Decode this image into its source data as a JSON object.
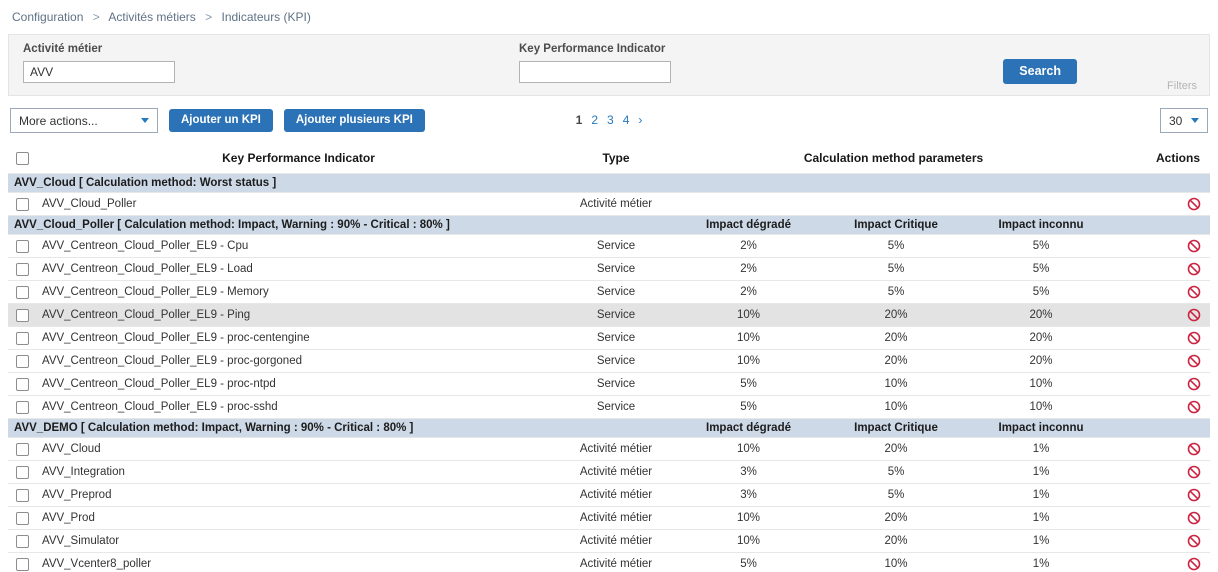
{
  "breadcrumb": {
    "separator": ">",
    "items": [
      "Configuration",
      "Activités métiers",
      "Indicateurs (KPI)"
    ]
  },
  "filters": {
    "ba_label": "Activité métier",
    "ba_value": "AVV",
    "kpi_label": "Key Performance Indicator",
    "kpi_value": "",
    "search_label": "Search",
    "filters_label": "Filters"
  },
  "toolbar": {
    "more_actions": "More actions...",
    "add_kpi": "Ajouter un KPI",
    "add_multiple_kpi": "Ajouter plusieurs KPI",
    "page_size": "30",
    "pagination": {
      "current": "1",
      "pages": [
        "2",
        "3",
        "4"
      ],
      "next": "›"
    }
  },
  "table": {
    "headers": {
      "kpi": "Key Performance Indicator",
      "type": "Type",
      "calc": "Calculation method parameters",
      "actions": "Actions"
    },
    "groups": [
      {
        "title": "AVV_Cloud [ Calculation method: Worst status ]",
        "param_headers": [
          "",
          "",
          ""
        ],
        "rows": [
          {
            "name": "AVV_Cloud_Poller",
            "type": "Activité métier",
            "params": [
              "",
              "",
              ""
            ]
          }
        ]
      },
      {
        "title": "AVV_Cloud_Poller [ Calculation method: Impact, Warning : 90% - Critical : 80% ]",
        "param_headers": [
          "Impact dégradé",
          "Impact Critique",
          "Impact inconnu"
        ],
        "rows": [
          {
            "name": "AVV_Centreon_Cloud_Poller_EL9 - Cpu",
            "type": "Service",
            "params": [
              "2%",
              "5%",
              "5%"
            ]
          },
          {
            "name": "AVV_Centreon_Cloud_Poller_EL9 - Load",
            "type": "Service",
            "params": [
              "2%",
              "5%",
              "5%"
            ]
          },
          {
            "name": "AVV_Centreon_Cloud_Poller_EL9 - Memory",
            "type": "Service",
            "params": [
              "2%",
              "5%",
              "5%"
            ]
          },
          {
            "name": "AVV_Centreon_Cloud_Poller_EL9 - Ping",
            "type": "Service",
            "params": [
              "10%",
              "20%",
              "20%"
            ],
            "highlighted": true
          },
          {
            "name": "AVV_Centreon_Cloud_Poller_EL9 - proc-centengine",
            "type": "Service",
            "params": [
              "10%",
              "20%",
              "20%"
            ]
          },
          {
            "name": "AVV_Centreon_Cloud_Poller_EL9 - proc-gorgoned",
            "type": "Service",
            "params": [
              "10%",
              "20%",
              "20%"
            ]
          },
          {
            "name": "AVV_Centreon_Cloud_Poller_EL9 - proc-ntpd",
            "type": "Service",
            "params": [
              "5%",
              "10%",
              "10%"
            ]
          },
          {
            "name": "AVV_Centreon_Cloud_Poller_EL9 - proc-sshd",
            "type": "Service",
            "params": [
              "5%",
              "10%",
              "10%"
            ]
          }
        ]
      },
      {
        "title": "AVV_DEMO [ Calculation method: Impact, Warning : 90% - Critical : 80% ]",
        "param_headers": [
          "Impact dégradé",
          "Impact Critique",
          "Impact inconnu"
        ],
        "rows": [
          {
            "name": "AVV_Cloud",
            "type": "Activité métier",
            "params": [
              "10%",
              "20%",
              "1%"
            ]
          },
          {
            "name": "AVV_Integration",
            "type": "Activité métier",
            "params": [
              "3%",
              "5%",
              "1%"
            ]
          },
          {
            "name": "AVV_Preprod",
            "type": "Activité métier",
            "params": [
              "3%",
              "5%",
              "1%"
            ]
          },
          {
            "name": "AVV_Prod",
            "type": "Activité métier",
            "params": [
              "10%",
              "20%",
              "1%"
            ]
          },
          {
            "name": "AVV_Simulator",
            "type": "Activité métier",
            "params": [
              "10%",
              "20%",
              "1%"
            ]
          },
          {
            "name": "AVV_Vcenter8_poller",
            "type": "Activité métier",
            "params": [
              "5%",
              "10%",
              "1%"
            ]
          }
        ]
      }
    ]
  },
  "icons": {
    "row_action": "ban-icon",
    "select_caret": "chevron-down-icon"
  },
  "colors": {
    "accent_blue": "#2b72b6",
    "link_blue": "#2779bd",
    "group_header_bg": "#cdd9e7",
    "action_icon_red": "#cc2340",
    "highlight_row": "#e3e3e3"
  }
}
